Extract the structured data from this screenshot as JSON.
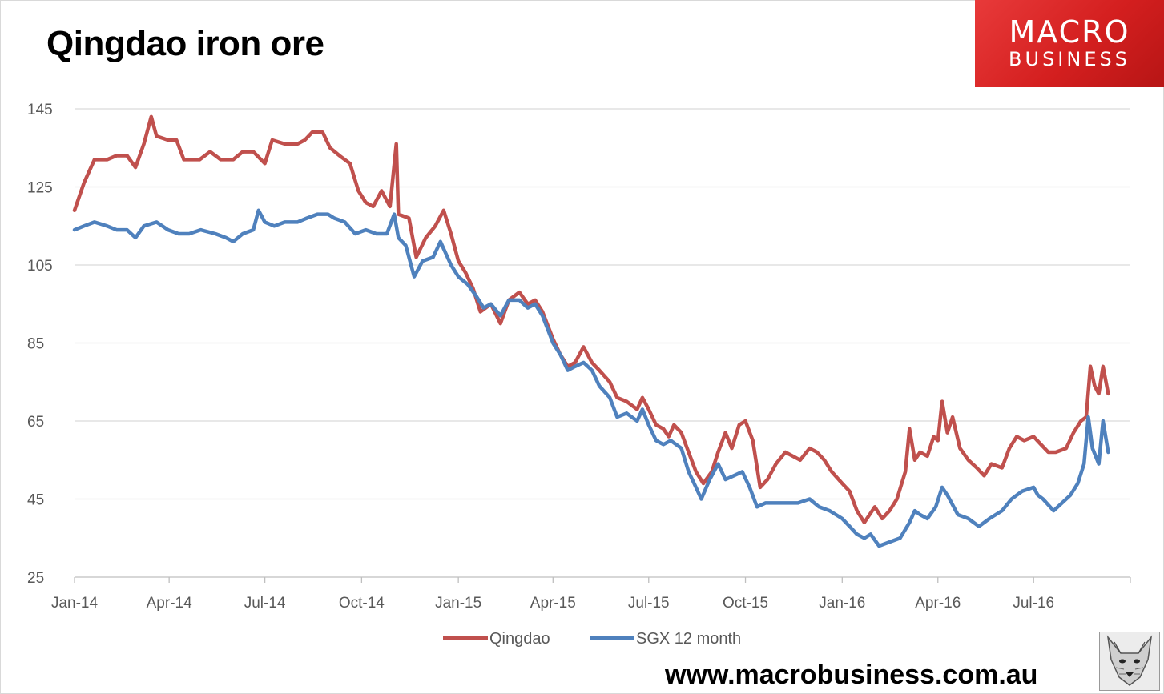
{
  "title": "Qingdao iron ore",
  "logo": {
    "line1": "MACRO",
    "line2": "BUSINESS"
  },
  "footer": {
    "url": "www.macrobusiness.com.au"
  },
  "colors": {
    "qingdao": "#c0504d",
    "sgx": "#4f81bd",
    "grid": "#d9d9d9"
  },
  "chart_data": {
    "type": "line",
    "title": "Qingdao iron ore",
    "xlabel": "",
    "ylabel": "",
    "ylim": [
      25,
      145
    ],
    "yticks": [
      25,
      45,
      65,
      85,
      105,
      125,
      145
    ],
    "x_tick_labels": [
      "Jan-14",
      "Apr-14",
      "Jul-14",
      "Oct-14",
      "Jan-15",
      "Apr-15",
      "Jul-15",
      "Oct-15",
      "Jan-16",
      "Apr-16",
      "Jul-16"
    ],
    "x_tick_dates": [
      "2014-01-01",
      "2014-04-01",
      "2014-07-01",
      "2014-10-01",
      "2015-01-01",
      "2015-04-01",
      "2015-07-01",
      "2015-10-01",
      "2016-01-01",
      "2016-04-01",
      "2016-07-01"
    ],
    "xlim": [
      "2014-01-01",
      "2016-10-01"
    ],
    "grid": true,
    "legend_position": "bottom",
    "series": [
      {
        "name": "Qingdao",
        "color": "#c0504d",
        "points": [
          [
            "2014-01-01",
            119
          ],
          [
            "2014-01-10",
            126
          ],
          [
            "2014-01-20",
            132
          ],
          [
            "2014-02-01",
            132
          ],
          [
            "2014-02-10",
            133
          ],
          [
            "2014-02-20",
            133
          ],
          [
            "2014-02-28",
            130
          ],
          [
            "2014-03-08",
            136
          ],
          [
            "2014-03-15",
            143
          ],
          [
            "2014-03-20",
            138
          ],
          [
            "2014-03-31",
            137
          ],
          [
            "2014-04-08",
            137
          ],
          [
            "2014-04-15",
            132
          ],
          [
            "2014-04-30",
            132
          ],
          [
            "2014-05-10",
            134
          ],
          [
            "2014-05-20",
            132
          ],
          [
            "2014-06-01",
            132
          ],
          [
            "2014-06-10",
            134
          ],
          [
            "2014-06-20",
            134
          ],
          [
            "2014-07-01",
            131
          ],
          [
            "2014-07-08",
            137
          ],
          [
            "2014-07-20",
            136
          ],
          [
            "2014-08-01",
            136
          ],
          [
            "2014-08-08",
            137
          ],
          [
            "2014-08-15",
            139
          ],
          [
            "2014-08-25",
            139
          ],
          [
            "2014-09-01",
            135
          ],
          [
            "2014-09-10",
            133
          ],
          [
            "2014-09-20",
            131
          ],
          [
            "2014-09-28",
            124
          ],
          [
            "2014-10-05",
            121
          ],
          [
            "2014-10-12",
            120
          ],
          [
            "2014-10-20",
            124
          ],
          [
            "2014-10-28",
            120
          ],
          [
            "2014-11-03",
            136
          ],
          [
            "2014-11-05",
            118
          ],
          [
            "2014-11-15",
            117
          ],
          [
            "2014-11-22",
            107
          ],
          [
            "2014-12-01",
            112
          ],
          [
            "2014-12-10",
            115
          ],
          [
            "2014-12-18",
            119
          ],
          [
            "2014-12-25",
            113
          ],
          [
            "2015-01-01",
            106
          ],
          [
            "2015-01-08",
            103
          ],
          [
            "2015-01-15",
            99
          ],
          [
            "2015-01-22",
            93
          ],
          [
            "2015-02-01",
            95
          ],
          [
            "2015-02-10",
            90
          ],
          [
            "2015-02-18",
            96
          ],
          [
            "2015-02-28",
            98
          ],
          [
            "2015-03-08",
            95
          ],
          [
            "2015-03-15",
            96
          ],
          [
            "2015-03-22",
            93
          ],
          [
            "2015-04-01",
            86
          ],
          [
            "2015-04-08",
            82
          ],
          [
            "2015-04-15",
            79
          ],
          [
            "2015-04-22",
            80
          ],
          [
            "2015-04-30",
            84
          ],
          [
            "2015-05-08",
            80
          ],
          [
            "2015-05-15",
            78
          ],
          [
            "2015-05-25",
            75
          ],
          [
            "2015-06-01",
            71
          ],
          [
            "2015-06-10",
            70
          ],
          [
            "2015-06-20",
            68
          ],
          [
            "2015-06-25",
            71
          ],
          [
            "2015-07-01",
            68
          ],
          [
            "2015-07-08",
            64
          ],
          [
            "2015-07-15",
            63
          ],
          [
            "2015-07-20",
            61
          ],
          [
            "2015-07-25",
            64
          ],
          [
            "2015-08-01",
            62
          ],
          [
            "2015-08-08",
            57
          ],
          [
            "2015-08-15",
            52
          ],
          [
            "2015-08-22",
            49
          ],
          [
            "2015-08-30",
            52
          ],
          [
            "2015-09-05",
            57
          ],
          [
            "2015-09-12",
            62
          ],
          [
            "2015-09-18",
            58
          ],
          [
            "2015-09-25",
            64
          ],
          [
            "2015-10-01",
            65
          ],
          [
            "2015-10-08",
            60
          ],
          [
            "2015-10-15",
            48
          ],
          [
            "2015-10-22",
            50
          ],
          [
            "2015-10-30",
            54
          ],
          [
            "2015-11-08",
            57
          ],
          [
            "2015-11-15",
            56
          ],
          [
            "2015-11-22",
            55
          ],
          [
            "2015-12-01",
            58
          ],
          [
            "2015-12-08",
            57
          ],
          [
            "2015-12-15",
            55
          ],
          [
            "2015-12-22",
            52
          ],
          [
            "2016-01-01",
            49
          ],
          [
            "2016-01-08",
            47
          ],
          [
            "2016-01-15",
            42
          ],
          [
            "2016-01-22",
            39
          ],
          [
            "2016-02-01",
            43
          ],
          [
            "2016-02-08",
            40
          ],
          [
            "2016-02-15",
            42
          ],
          [
            "2016-02-22",
            45
          ],
          [
            "2016-03-01",
            52
          ],
          [
            "2016-03-05",
            63
          ],
          [
            "2016-03-10",
            55
          ],
          [
            "2016-03-15",
            57
          ],
          [
            "2016-03-22",
            56
          ],
          [
            "2016-03-28",
            61
          ],
          [
            "2016-04-01",
            60
          ],
          [
            "2016-04-05",
            70
          ],
          [
            "2016-04-10",
            62
          ],
          [
            "2016-04-15",
            66
          ],
          [
            "2016-04-22",
            58
          ],
          [
            "2016-04-30",
            55
          ],
          [
            "2016-05-08",
            53
          ],
          [
            "2016-05-15",
            51
          ],
          [
            "2016-05-22",
            54
          ],
          [
            "2016-06-01",
            53
          ],
          [
            "2016-06-08",
            58
          ],
          [
            "2016-06-15",
            61
          ],
          [
            "2016-06-22",
            60
          ],
          [
            "2016-07-01",
            61
          ],
          [
            "2016-07-08",
            59
          ],
          [
            "2016-07-15",
            57
          ],
          [
            "2016-07-22",
            57
          ],
          [
            "2016-08-01",
            58
          ],
          [
            "2016-08-08",
            62
          ],
          [
            "2016-08-15",
            65
          ],
          [
            "2016-08-20",
            66
          ],
          [
            "2016-08-24",
            79
          ],
          [
            "2016-08-28",
            74
          ],
          [
            "2016-09-01",
            72
          ],
          [
            "2016-09-05",
            79
          ],
          [
            "2016-09-10",
            72
          ]
        ]
      },
      {
        "name": "SGX 12 month",
        "color": "#4f81bd",
        "points": [
          [
            "2014-01-01",
            114
          ],
          [
            "2014-01-10",
            115
          ],
          [
            "2014-01-20",
            116
          ],
          [
            "2014-02-01",
            115
          ],
          [
            "2014-02-10",
            114
          ],
          [
            "2014-02-20",
            114
          ],
          [
            "2014-02-28",
            112
          ],
          [
            "2014-03-08",
            115
          ],
          [
            "2014-03-20",
            116
          ],
          [
            "2014-03-31",
            114
          ],
          [
            "2014-04-10",
            113
          ],
          [
            "2014-04-20",
            113
          ],
          [
            "2014-05-01",
            114
          ],
          [
            "2014-05-15",
            113
          ],
          [
            "2014-05-25",
            112
          ],
          [
            "2014-06-01",
            111
          ],
          [
            "2014-06-10",
            113
          ],
          [
            "2014-06-20",
            114
          ],
          [
            "2014-06-25",
            119
          ],
          [
            "2014-07-01",
            116
          ],
          [
            "2014-07-10",
            115
          ],
          [
            "2014-07-20",
            116
          ],
          [
            "2014-08-01",
            116
          ],
          [
            "2014-08-10",
            117
          ],
          [
            "2014-08-20",
            118
          ],
          [
            "2014-08-30",
            118
          ],
          [
            "2014-09-05",
            117
          ],
          [
            "2014-09-15",
            116
          ],
          [
            "2014-09-25",
            113
          ],
          [
            "2014-10-05",
            114
          ],
          [
            "2014-10-15",
            113
          ],
          [
            "2014-10-25",
            113
          ],
          [
            "2014-11-01",
            118
          ],
          [
            "2014-11-05",
            112
          ],
          [
            "2014-11-12",
            110
          ],
          [
            "2014-11-20",
            102
          ],
          [
            "2014-11-28",
            106
          ],
          [
            "2014-12-08",
            107
          ],
          [
            "2014-12-15",
            111
          ],
          [
            "2014-12-25",
            105
          ],
          [
            "2015-01-01",
            102
          ],
          [
            "2015-01-10",
            100
          ],
          [
            "2015-01-18",
            97
          ],
          [
            "2015-01-25",
            94
          ],
          [
            "2015-02-01",
            95
          ],
          [
            "2015-02-10",
            92
          ],
          [
            "2015-02-18",
            96
          ],
          [
            "2015-02-28",
            96
          ],
          [
            "2015-03-08",
            94
          ],
          [
            "2015-03-15",
            95
          ],
          [
            "2015-03-22",
            92
          ],
          [
            "2015-04-01",
            85
          ],
          [
            "2015-04-08",
            82
          ],
          [
            "2015-04-15",
            78
          ],
          [
            "2015-04-22",
            79
          ],
          [
            "2015-04-30",
            80
          ],
          [
            "2015-05-08",
            78
          ],
          [
            "2015-05-15",
            74
          ],
          [
            "2015-05-25",
            71
          ],
          [
            "2015-06-01",
            66
          ],
          [
            "2015-06-10",
            67
          ],
          [
            "2015-06-20",
            65
          ],
          [
            "2015-06-25",
            68
          ],
          [
            "2015-07-01",
            64
          ],
          [
            "2015-07-08",
            60
          ],
          [
            "2015-07-15",
            59
          ],
          [
            "2015-07-22",
            60
          ],
          [
            "2015-08-01",
            58
          ],
          [
            "2015-08-08",
            52
          ],
          [
            "2015-08-15",
            48
          ],
          [
            "2015-08-20",
            45
          ],
          [
            "2015-08-28",
            50
          ],
          [
            "2015-09-05",
            54
          ],
          [
            "2015-09-12",
            50
          ],
          [
            "2015-09-20",
            51
          ],
          [
            "2015-09-28",
            52
          ],
          [
            "2015-10-05",
            48
          ],
          [
            "2015-10-12",
            43
          ],
          [
            "2015-10-20",
            44
          ],
          [
            "2015-10-30",
            44
          ],
          [
            "2015-11-10",
            44
          ],
          [
            "2015-11-20",
            44
          ],
          [
            "2015-12-01",
            45
          ],
          [
            "2015-12-10",
            43
          ],
          [
            "2015-12-20",
            42
          ],
          [
            "2016-01-01",
            40
          ],
          [
            "2016-01-08",
            38
          ],
          [
            "2016-01-15",
            36
          ],
          [
            "2016-01-22",
            35
          ],
          [
            "2016-01-28",
            36
          ],
          [
            "2016-02-05",
            33
          ],
          [
            "2016-02-15",
            34
          ],
          [
            "2016-02-25",
            35
          ],
          [
            "2016-03-05",
            39
          ],
          [
            "2016-03-10",
            42
          ],
          [
            "2016-03-15",
            41
          ],
          [
            "2016-03-22",
            40
          ],
          [
            "2016-03-30",
            43
          ],
          [
            "2016-04-05",
            48
          ],
          [
            "2016-04-10",
            46
          ],
          [
            "2016-04-20",
            41
          ],
          [
            "2016-04-30",
            40
          ],
          [
            "2016-05-10",
            38
          ],
          [
            "2016-05-20",
            40
          ],
          [
            "2016-06-01",
            42
          ],
          [
            "2016-06-10",
            45
          ],
          [
            "2016-06-20",
            47
          ],
          [
            "2016-07-01",
            48
          ],
          [
            "2016-07-05",
            46
          ],
          [
            "2016-07-10",
            45
          ],
          [
            "2016-07-20",
            42
          ],
          [
            "2016-07-28",
            44
          ],
          [
            "2016-08-05",
            46
          ],
          [
            "2016-08-12",
            49
          ],
          [
            "2016-08-18",
            54
          ],
          [
            "2016-08-22",
            66
          ],
          [
            "2016-08-26",
            58
          ],
          [
            "2016-09-01",
            54
          ],
          [
            "2016-09-05",
            65
          ],
          [
            "2016-09-10",
            57
          ]
        ]
      }
    ]
  }
}
